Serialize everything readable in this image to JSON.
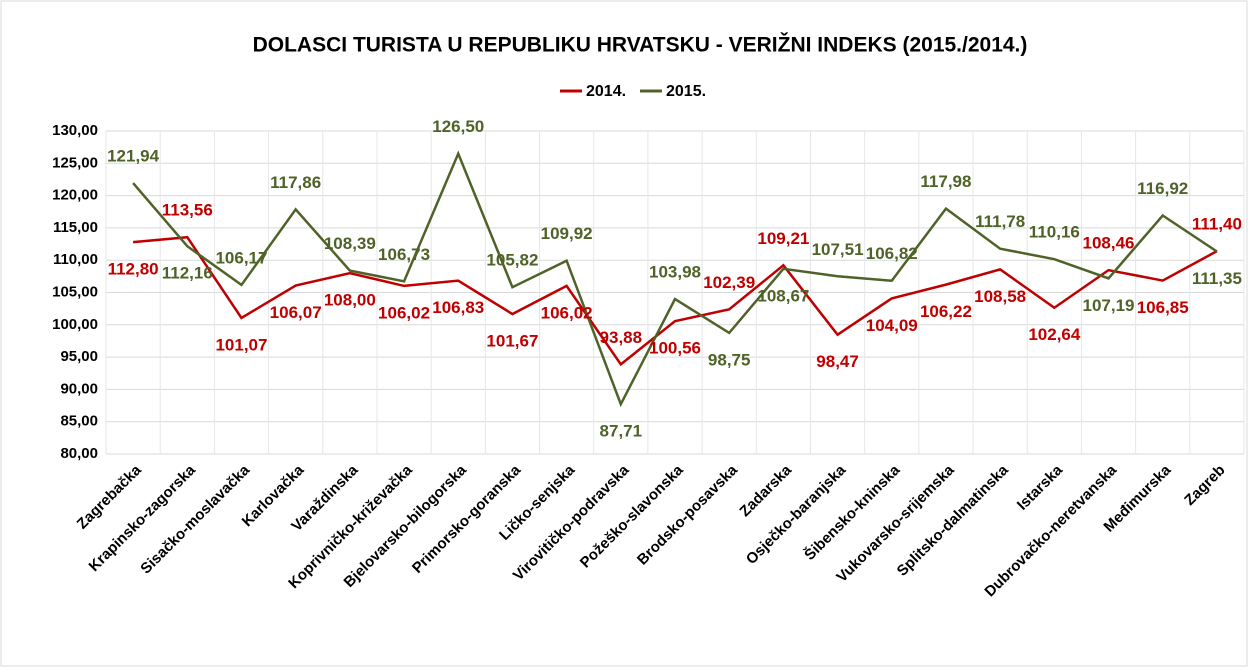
{
  "chart_data": {
    "type": "line",
    "title": "DOLASCI TURISTA U REPUBLIKU HRVATSKU - VERIŽNI INDEKS (2015./2014.)",
    "categories": [
      "Zagrebačka",
      "Krapinsko-zagorska",
      "Sisačko-moslavačka",
      "Karlovačka",
      "Varaždinska",
      "Koprivničko-križevačka",
      "Bjelovarsko-bilogorska",
      "Primorsko-goranska",
      "Ličko-senjska",
      "Virovitičko-podravska",
      "Požeško-slavonska",
      "Brodsko-posavska",
      "Zadarska",
      "Osječko-baranjska",
      "Šibensko-kninska",
      "Vukovarsko-srijemska",
      "Splitsko-dalmatinska",
      "Istarska",
      "Dubrovačko-neretvanska",
      "Međimurska",
      "Zagreb"
    ],
    "series": [
      {
        "name": "2014.",
        "color": "#c00000",
        "values": [
          112.8,
          113.56,
          101.07,
          106.07,
          108.0,
          106.02,
          106.83,
          101.67,
          106.02,
          93.88,
          100.56,
          102.39,
          109.21,
          98.47,
          104.09,
          106.22,
          108.58,
          102.64,
          108.46,
          106.85,
          111.4
        ],
        "value_labels": [
          "112,80",
          "113,56",
          "101,07",
          "106,07",
          "108,00",
          "106,02",
          "106,83",
          "101,67",
          "106,02",
          "93,88",
          "100,56",
          "102,39",
          "109,21",
          "98,47",
          "104,09",
          "106,22",
          "108,58",
          "102,64",
          "108,46",
          "106,85",
          "111,40"
        ]
      },
      {
        "name": "2015.",
        "color": "#4f6228",
        "values": [
          121.94,
          112.16,
          106.17,
          117.86,
          108.39,
          106.73,
          126.5,
          105.82,
          109.92,
          87.71,
          103.98,
          98.75,
          108.67,
          107.51,
          106.82,
          117.98,
          111.78,
          110.16,
          107.19,
          116.92,
          111.35
        ],
        "value_labels": [
          "121,94",
          "112,16",
          "106,17",
          "117,86",
          "108,39",
          "106,73",
          "126,50",
          "105,82",
          "109,92",
          "87,71",
          "103,98",
          "98,75",
          "108,67",
          "107,51",
          "106,82",
          "117,98",
          "111,78",
          "110,16",
          "107,19",
          "116,92",
          "111,35"
        ]
      }
    ],
    "ylim": [
      80,
      130
    ],
    "yticks": [
      {
        "value": 80,
        "label": "80,00"
      },
      {
        "value": 85,
        "label": "85,00"
      },
      {
        "value": 90,
        "label": "90,00"
      },
      {
        "value": 95,
        "label": "95,00"
      },
      {
        "value": 100,
        "label": "100,00"
      },
      {
        "value": 105,
        "label": "105,00"
      },
      {
        "value": 110,
        "label": "110,00"
      },
      {
        "value": 115,
        "label": "115,00"
      },
      {
        "value": 120,
        "label": "120,00"
      },
      {
        "value": 125,
        "label": "125,00"
      },
      {
        "value": 130,
        "label": "130,00"
      }
    ],
    "grid": true,
    "legend": "top"
  }
}
